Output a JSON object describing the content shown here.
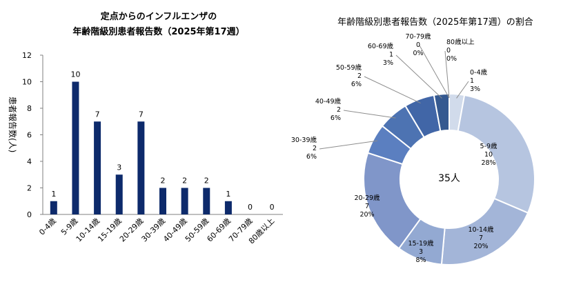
{
  "bar_chart": {
    "title_line1": "定点からのインフルエンザの",
    "title_line2": "年齢階級別患者報告数（2025年第17週）",
    "ylabel": "患者報告数(人)"
  },
  "donut_chart": {
    "title": "年齢階級別患者報告数（2025年第17週）の割合",
    "center_label": "35人"
  },
  "colors": {
    "bar": "#0d2a6b",
    "donut": [
      "#d1dbeb",
      "#b6c5e0",
      "#a3b5d8",
      "#93a9d2",
      "#8096c9",
      "#5b7fc0",
      "#4d73b2",
      "#4166a7",
      "#355990",
      "#2a4a82",
      "#1e3a73"
    ]
  },
  "chart_data": [
    {
      "type": "bar",
      "title": "定点からのインフルエンザの 年齢階級別患者報告数（2025年第17週）",
      "xlabel": "",
      "ylabel": "患者報告数(人)",
      "categories": [
        "0-4歳",
        "5-9歳",
        "10-14歳",
        "15-19歳",
        "20-29歳",
        "30-39歳",
        "40-49歳",
        "50-59歳",
        "60-69歳",
        "70-79歳",
        "80歳以上"
      ],
      "values": [
        1,
        10,
        7,
        3,
        7,
        2,
        2,
        2,
        1,
        0,
        0
      ],
      "ylim": [
        0,
        12
      ],
      "yticks": [
        0,
        2,
        4,
        6,
        8,
        10,
        12
      ],
      "grid": false,
      "legend": "none"
    },
    {
      "type": "pie",
      "title": "年齢階級別患者報告数（2025年第17週）の割合",
      "center_label": "35人",
      "categories": [
        "0-4歳",
        "5-9歳",
        "10-14歳",
        "15-19歳",
        "20-29歳",
        "30-39歳",
        "40-49歳",
        "50-59歳",
        "60-69歳",
        "70-79歳",
        "80歳以上"
      ],
      "values": [
        1,
        10,
        7,
        3,
        7,
        2,
        2,
        2,
        1,
        0,
        0
      ],
      "percent_labels": [
        "3%",
        "28%",
        "20%",
        "8%",
        "20%",
        "6%",
        "6%",
        "6%",
        "3%",
        "0%",
        "0%"
      ],
      "total": 35,
      "legend": "none"
    }
  ]
}
